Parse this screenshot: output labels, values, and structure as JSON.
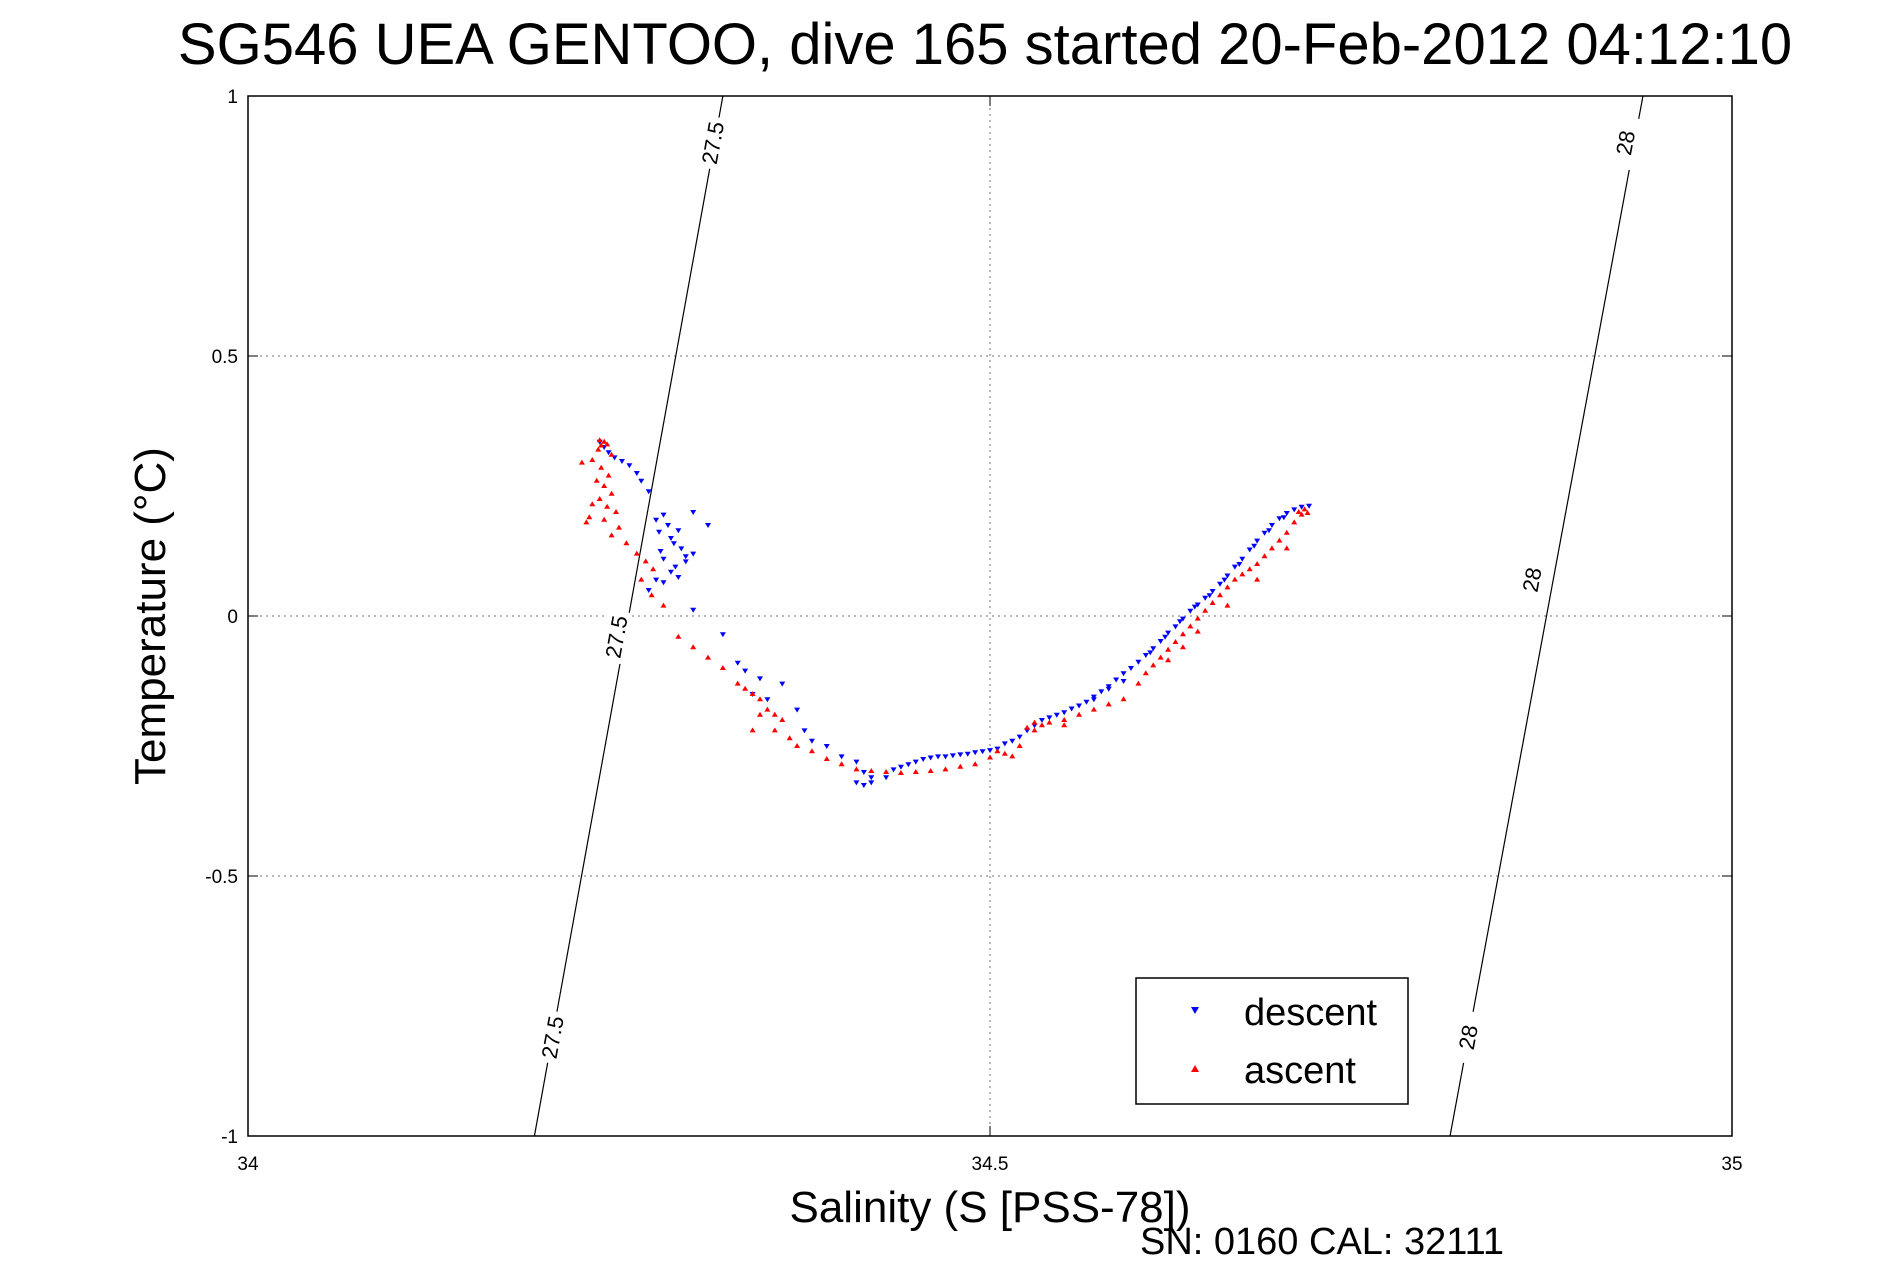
{
  "chart_data": {
    "type": "scatter",
    "title": "SG546 UEA GENTOO, dive 165 started 20-Feb-2012 04:12:10",
    "xlabel": "Salinity (S [PSS-78])",
    "ylabel": "Temperature (°C)",
    "xlim": [
      34,
      35
    ],
    "ylim": [
      -1,
      1
    ],
    "x_ticks": [
      34,
      34.5,
      35
    ],
    "x_tick_labels": [
      "34",
      "34.5",
      "35"
    ],
    "y_ticks": [
      1,
      0.5,
      0,
      -0.5,
      -1
    ],
    "y_tick_labels": [
      "1",
      "0.5",
      "0",
      "-0.5",
      "-1"
    ],
    "grid": true,
    "legend_position": "bottom-right",
    "series": [
      {
        "name": "descent",
        "color": "#0000ff",
        "marker": "triangle-down",
        "points": [
          [
            34.237,
            0.335
          ],
          [
            34.24,
            0.325
          ],
          [
            34.243,
            0.315
          ],
          [
            34.247,
            0.305
          ],
          [
            34.252,
            0.298
          ],
          [
            34.257,
            0.29
          ],
          [
            34.262,
            0.275
          ],
          [
            34.265,
            0.26
          ],
          [
            34.27,
            0.24
          ],
          [
            34.28,
            0.195
          ],
          [
            34.275,
            0.185
          ],
          [
            34.283,
            0.175
          ],
          [
            34.277,
            0.162
          ],
          [
            34.285,
            0.15
          ],
          [
            34.29,
            0.165
          ],
          [
            34.292,
            0.13
          ],
          [
            34.28,
            0.11
          ],
          [
            34.288,
            0.095
          ],
          [
            34.295,
            0.115
          ],
          [
            34.285,
            0.085
          ],
          [
            34.275,
            0.07
          ],
          [
            34.3,
            0.2
          ],
          [
            34.31,
            0.175
          ],
          [
            34.28,
            0.065
          ],
          [
            34.29,
            0.075
          ],
          [
            34.27,
            0.05
          ],
          [
            34.3,
            0.12
          ],
          [
            34.287,
            0.14
          ],
          [
            34.278,
            0.125
          ],
          [
            34.295,
            0.105
          ],
          [
            34.3,
            0.012
          ],
          [
            34.32,
            -0.035
          ],
          [
            34.33,
            -0.09
          ],
          [
            34.345,
            -0.12
          ],
          [
            34.335,
            -0.105
          ],
          [
            34.34,
            -0.15
          ],
          [
            34.35,
            -0.16
          ],
          [
            34.36,
            -0.13
          ],
          [
            34.37,
            -0.18
          ],
          [
            34.375,
            -0.22
          ],
          [
            34.38,
            -0.24
          ],
          [
            34.39,
            -0.25
          ],
          [
            34.4,
            -0.27
          ],
          [
            34.41,
            -0.28
          ],
          [
            34.415,
            -0.3
          ],
          [
            34.42,
            -0.31
          ],
          [
            34.41,
            -0.32
          ],
          [
            34.415,
            -0.325
          ],
          [
            34.42,
            -0.32
          ],
          [
            34.43,
            -0.31
          ],
          [
            34.435,
            -0.295
          ],
          [
            34.44,
            -0.29
          ],
          [
            34.445,
            -0.285
          ],
          [
            34.45,
            -0.28
          ],
          [
            34.455,
            -0.275
          ],
          [
            34.46,
            -0.272
          ],
          [
            34.465,
            -0.27
          ],
          [
            34.47,
            -0.27
          ],
          [
            34.475,
            -0.268
          ],
          [
            34.48,
            -0.266
          ],
          [
            34.485,
            -0.265
          ],
          [
            34.49,
            -0.262
          ],
          [
            34.495,
            -0.26
          ],
          [
            34.5,
            -0.258
          ],
          [
            34.505,
            -0.255
          ],
          [
            34.51,
            -0.245
          ],
          [
            34.515,
            -0.24
          ],
          [
            34.52,
            -0.232
          ],
          [
            34.525,
            -0.22
          ],
          [
            34.53,
            -0.21
          ],
          [
            34.535,
            -0.2
          ],
          [
            34.54,
            -0.195
          ],
          [
            34.545,
            -0.19
          ],
          [
            34.55,
            -0.185
          ],
          [
            34.555,
            -0.178
          ],
          [
            34.56,
            -0.172
          ],
          [
            34.565,
            -0.165
          ],
          [
            34.57,
            -0.155
          ],
          [
            34.575,
            -0.145
          ],
          [
            34.58,
            -0.135
          ],
          [
            34.585,
            -0.122
          ],
          [
            34.59,
            -0.11
          ],
          [
            34.595,
            -0.1
          ],
          [
            34.6,
            -0.088
          ],
          [
            34.605,
            -0.075
          ],
          [
            34.61,
            -0.062
          ],
          [
            34.615,
            -0.048
          ],
          [
            34.62,
            -0.032
          ],
          [
            34.625,
            -0.02
          ],
          [
            34.63,
            -0.005
          ],
          [
            34.635,
            0.01
          ],
          [
            34.64,
            0.022
          ],
          [
            34.645,
            0.035
          ],
          [
            34.65,
            0.048
          ],
          [
            34.655,
            0.062
          ],
          [
            34.66,
            0.078
          ],
          [
            34.665,
            0.095
          ],
          [
            34.67,
            0.11
          ],
          [
            34.675,
            0.128
          ],
          [
            34.68,
            0.145
          ],
          [
            34.685,
            0.16
          ],
          [
            34.69,
            0.175
          ],
          [
            34.695,
            0.188
          ],
          [
            34.7,
            0.198
          ],
          [
            34.705,
            0.205
          ],
          [
            34.71,
            0.21
          ],
          [
            34.715,
            0.212
          ],
          [
            34.608,
            -0.07
          ],
          [
            34.618,
            -0.04
          ],
          [
            34.628,
            -0.01
          ],
          [
            34.638,
            0.018
          ],
          [
            34.648,
            0.04
          ],
          [
            34.658,
            0.07
          ],
          [
            34.668,
            0.1
          ],
          [
            34.678,
            0.135
          ],
          [
            34.688,
            0.165
          ],
          [
            34.698,
            0.19
          ],
          [
            34.57,
            -0.16
          ],
          [
            34.58,
            -0.14
          ],
          [
            34.59,
            -0.125
          ]
        ]
      },
      {
        "name": "ascent",
        "color": "#ff0000",
        "marker": "triangle-up",
        "points": [
          [
            34.237,
            0.338
          ],
          [
            34.24,
            0.335
          ],
          [
            34.238,
            0.328
          ],
          [
            34.242,
            0.33
          ],
          [
            34.236,
            0.32
          ],
          [
            34.245,
            0.31
          ],
          [
            34.225,
            0.295
          ],
          [
            34.232,
            0.3
          ],
          [
            34.238,
            0.285
          ],
          [
            34.243,
            0.27
          ],
          [
            34.235,
            0.26
          ],
          [
            34.24,
            0.25
          ],
          [
            34.245,
            0.235
          ],
          [
            34.237,
            0.225
          ],
          [
            34.232,
            0.215
          ],
          [
            34.242,
            0.21
          ],
          [
            34.248,
            0.2
          ],
          [
            34.23,
            0.19
          ],
          [
            34.24,
            0.185
          ],
          [
            34.25,
            0.17
          ],
          [
            34.245,
            0.155
          ],
          [
            34.228,
            0.18
          ],
          [
            34.255,
            0.14
          ],
          [
            34.262,
            0.12
          ],
          [
            34.268,
            0.105
          ],
          [
            34.273,
            0.09
          ],
          [
            34.265,
            0.07
          ],
          [
            34.272,
            0.04
          ],
          [
            34.28,
            0.02
          ],
          [
            34.29,
            -0.04
          ],
          [
            34.3,
            -0.06
          ],
          [
            34.31,
            -0.08
          ],
          [
            34.32,
            -0.1
          ],
          [
            34.33,
            -0.13
          ],
          [
            34.335,
            -0.14
          ],
          [
            34.34,
            -0.15
          ],
          [
            34.345,
            -0.16
          ],
          [
            34.35,
            -0.18
          ],
          [
            34.355,
            -0.19
          ],
          [
            34.36,
            -0.2
          ],
          [
            34.345,
            -0.19
          ],
          [
            34.34,
            -0.22
          ],
          [
            34.355,
            -0.22
          ],
          [
            34.365,
            -0.235
          ],
          [
            34.37,
            -0.25
          ],
          [
            34.38,
            -0.26
          ],
          [
            34.39,
            -0.275
          ],
          [
            34.4,
            -0.285
          ],
          [
            34.41,
            -0.295
          ],
          [
            34.42,
            -0.298
          ],
          [
            34.43,
            -0.3
          ],
          [
            34.44,
            -0.302
          ],
          [
            34.45,
            -0.3
          ],
          [
            34.46,
            -0.298
          ],
          [
            34.47,
            -0.295
          ],
          [
            34.48,
            -0.29
          ],
          [
            34.49,
            -0.285
          ],
          [
            34.5,
            -0.272
          ],
          [
            34.505,
            -0.26
          ],
          [
            34.51,
            -0.265
          ],
          [
            34.515,
            -0.27
          ],
          [
            34.52,
            -0.25
          ],
          [
            34.525,
            -0.215
          ],
          [
            34.53,
            -0.205
          ],
          [
            34.535,
            -0.21
          ],
          [
            34.54,
            -0.205
          ],
          [
            34.55,
            -0.2
          ],
          [
            34.56,
            -0.19
          ],
          [
            34.57,
            -0.18
          ],
          [
            34.58,
            -0.17
          ],
          [
            34.59,
            -0.16
          ],
          [
            34.6,
            -0.13
          ],
          [
            34.605,
            -0.11
          ],
          [
            34.61,
            -0.095
          ],
          [
            34.615,
            -0.08
          ],
          [
            34.62,
            -0.065
          ],
          [
            34.625,
            -0.05
          ],
          [
            34.63,
            -0.035
          ],
          [
            34.635,
            -0.02
          ],
          [
            34.64,
            -0.005
          ],
          [
            34.645,
            0.01
          ],
          [
            34.65,
            0.025
          ],
          [
            34.655,
            0.04
          ],
          [
            34.66,
            0.055
          ],
          [
            34.665,
            0.07
          ],
          [
            34.67,
            0.08
          ],
          [
            34.675,
            0.09
          ],
          [
            34.68,
            0.1
          ],
          [
            34.685,
            0.115
          ],
          [
            34.69,
            0.13
          ],
          [
            34.695,
            0.145
          ],
          [
            34.7,
            0.16
          ],
          [
            34.705,
            0.18
          ],
          [
            34.71,
            0.195
          ],
          [
            34.712,
            0.205
          ],
          [
            34.708,
            0.2
          ],
          [
            34.714,
            0.198
          ],
          [
            34.62,
            -0.085
          ],
          [
            34.63,
            -0.06
          ],
          [
            34.64,
            -0.03
          ],
          [
            34.66,
            0.02
          ],
          [
            34.68,
            0.07
          ],
          [
            34.7,
            0.13
          ],
          [
            34.55,
            -0.21
          ],
          [
            34.53,
            -0.22
          ]
        ]
      }
    ],
    "isopycnals": [
      {
        "label": "27.5",
        "points": [
          [
            34.193,
            -1.0
          ],
          [
            34.32,
            1.0
          ]
        ],
        "label_positions": [
          [
            34.205,
            -0.81
          ],
          [
            34.248,
            -0.04
          ],
          [
            34.313,
            0.91
          ]
        ]
      },
      {
        "label": "28",
        "points": [
          [
            34.81,
            -1.0
          ],
          [
            34.94,
            1.0
          ]
        ],
        "label_positions": [
          [
            34.822,
            -0.81
          ],
          [
            34.865,
            0.07
          ],
          [
            34.928,
            0.91
          ]
        ]
      }
    ],
    "annotation": "SN: 0160  CAL: 32111"
  }
}
